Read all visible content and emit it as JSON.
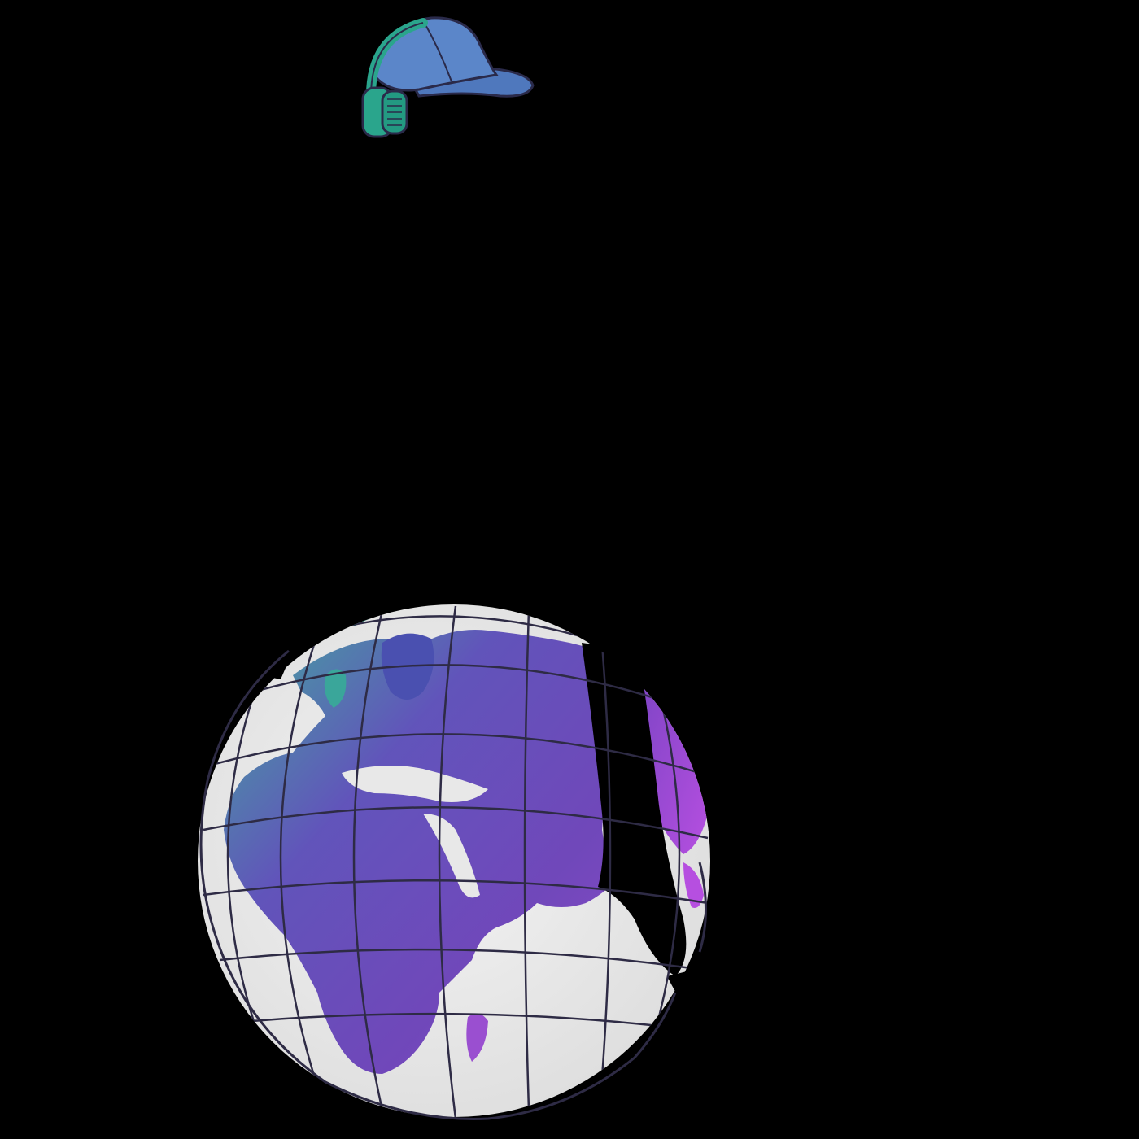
{
  "scene": {
    "background_color": "#000000",
    "elements": [
      {
        "name": "cap-with-headphones-icon",
        "cap_color": "#5b86c9",
        "headphone_color": "#2aa58c",
        "outline_color": "#2a2a4a"
      },
      {
        "name": "globe-icon",
        "ocean_color": "#ececec",
        "land_colors": [
          "#6a3fb8",
          "#3aa69a",
          "#a24fd6"
        ],
        "grid_color": "#2e2b45"
      }
    ]
  }
}
